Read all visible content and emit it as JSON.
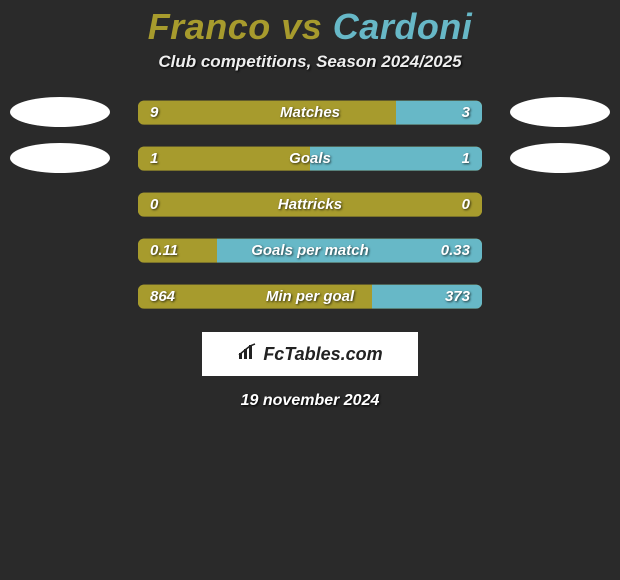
{
  "header": {
    "player1": "Franco",
    "vs": "vs",
    "player2": "Cardoni",
    "subtitle": "Club competitions, Season 2024/2025",
    "player1_color": "#a79b2d",
    "player2_color": "#67b8c7"
  },
  "colors": {
    "background": "#2a2a2a",
    "p1_bar": "#a79b2d",
    "p2_bar": "#67b8c7",
    "track_radius": 6
  },
  "rows": [
    {
      "label": "Matches",
      "left_val": "9",
      "right_val": "3",
      "left_pct": 75,
      "right_pct": 25,
      "show_ellipses": true
    },
    {
      "label": "Goals",
      "left_val": "1",
      "right_val": "1",
      "left_pct": 50,
      "right_pct": 50,
      "show_ellipses": true
    },
    {
      "label": "Hattricks",
      "left_val": "0",
      "right_val": "0",
      "left_pct": 100,
      "right_pct": 0,
      "show_ellipses": false
    },
    {
      "label": "Goals per match",
      "left_val": "0.11",
      "right_val": "0.33",
      "left_pct": 23,
      "right_pct": 77,
      "show_ellipses": false
    },
    {
      "label": "Min per goal",
      "left_val": "864",
      "right_val": "373",
      "left_pct": 68,
      "right_pct": 32,
      "show_ellipses": false
    }
  ],
  "branding": {
    "site_name": "FcTables.com",
    "icon": "bar-chart-icon"
  },
  "footer": {
    "date": "19 november 2024"
  },
  "typography": {
    "title_fontsize": 36,
    "subtitle_fontsize": 17,
    "label_fontsize": 15,
    "title_style": "italic bold"
  }
}
